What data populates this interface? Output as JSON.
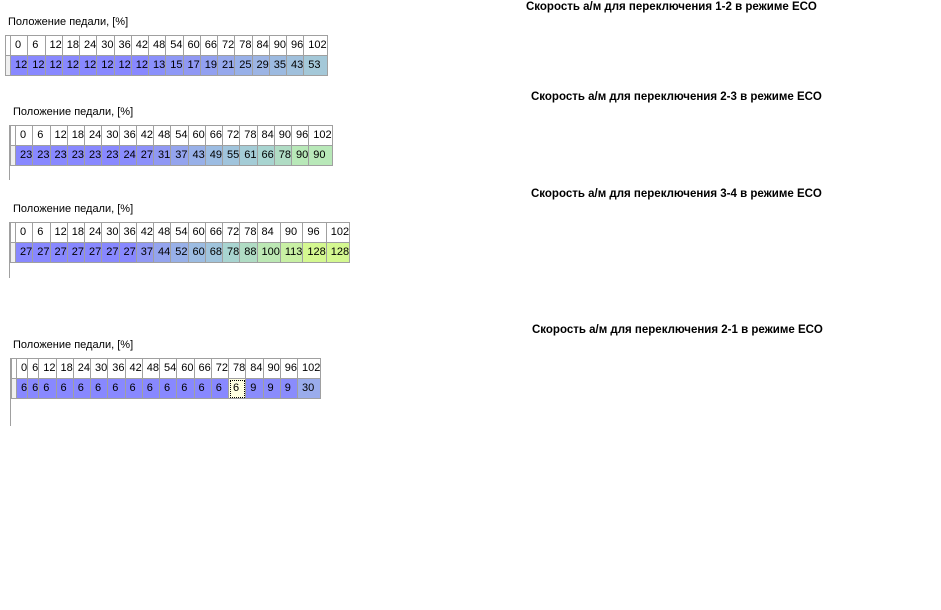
{
  "pedal_label": "Положение педали, [%]",
  "tables": [
    {
      "title": "Скорость а/м для переключения 1-2 в режиме ECO",
      "headers": [
        "0",
        "6",
        "12",
        "18",
        "24",
        "30",
        "36",
        "42",
        "48",
        "54",
        "60",
        "66",
        "72",
        "78",
        "84",
        "90",
        "96",
        "102"
      ],
      "values": [
        "12",
        "12",
        "12",
        "12",
        "12",
        "12",
        "12",
        "12",
        "13",
        "15",
        "17",
        "19",
        "21",
        "25",
        "29",
        "35",
        "43",
        "53"
      ],
      "colors": [
        "#8888ff",
        "#8888ff",
        "#8888ff",
        "#8888ff",
        "#8888ff",
        "#8888ff",
        "#8888ff",
        "#8888ff",
        "#8a90fb",
        "#8e98f6",
        "#9098f4",
        "#92a0f0",
        "#96a8ec",
        "#98b0e8",
        "#9cb4e4",
        "#9cbae0",
        "#a0c0dc",
        "#a4c8d8"
      ]
    },
    {
      "title": "Скорость а/м для переключения 2-3 в режиме ECO",
      "headers": [
        "0",
        "6",
        "12",
        "18",
        "24",
        "30",
        "36",
        "42",
        "48",
        "54",
        "60",
        "66",
        "72",
        "78",
        "84",
        "90",
        "96",
        "102"
      ],
      "values": [
        "23",
        "23",
        "23",
        "23",
        "23",
        "23",
        "24",
        "27",
        "31",
        "37",
        "43",
        "49",
        "55",
        "61",
        "66",
        "78",
        "90",
        "90"
      ],
      "colors": [
        "#8888ff",
        "#8888ff",
        "#8888ff",
        "#8888ff",
        "#8888ff",
        "#8888ff",
        "#8a8cfc",
        "#8c90fa",
        "#9098f4",
        "#94a4ee",
        "#98b0e8",
        "#9cbce2",
        "#a0c4dc",
        "#a4ccd6",
        "#a8d4d0",
        "#b0dcc4",
        "#b8e8b8",
        "#b8e8b8"
      ]
    },
    {
      "title": "Скорость а/м для переключения 3-4 в режиме ECO",
      "headers": [
        "0",
        "6",
        "12",
        "18",
        "24",
        "30",
        "36",
        "42",
        "48",
        "54",
        "60",
        "66",
        "72",
        "78",
        "84",
        "90",
        "96",
        "102"
      ],
      "values": [
        "27",
        "27",
        "27",
        "27",
        "27",
        "27",
        "27",
        "37",
        "44",
        "52",
        "60",
        "68",
        "78",
        "88",
        "100",
        "113",
        "128",
        "128"
      ],
      "colors": [
        "#8888ff",
        "#8888ff",
        "#8888ff",
        "#8888ff",
        "#8888ff",
        "#8888ff",
        "#8888ff",
        "#9098f4",
        "#94a4ee",
        "#98b0e8",
        "#9cbce2",
        "#a0c4dc",
        "#a8d4d0",
        "#b0dcc4",
        "#bce8b4",
        "#c8f0a4",
        "#d4f890",
        "#d4f890"
      ]
    },
    {
      "title": "Скорость а/м для переключения 2-1 в режиме ECO",
      "headers": [
        "0",
        "6",
        "12",
        "18",
        "24",
        "30",
        "36",
        "42",
        "48",
        "54",
        "60",
        "66",
        "72",
        "78",
        "84",
        "90",
        "96",
        "102"
      ],
      "values": [
        "6",
        "6",
        "6",
        "6",
        "6",
        "6",
        "6",
        "6",
        "6",
        "6",
        "6",
        "6",
        "6",
        "6",
        "9",
        "9",
        "9",
        "30"
      ],
      "colors": [
        "#8888ff",
        "#8888ff",
        "#8888ff",
        "#8888ff",
        "#8888ff",
        "#8888ff",
        "#8888ff",
        "#8888ff",
        "#8888ff",
        "#8888ff",
        "#8888ff",
        "#8888ff",
        "#8888ff",
        "#ffffe0",
        "#8a8cfc",
        "#8a8cfc",
        "#8a8cfc",
        "#9aacec"
      ],
      "selected_index": 13
    }
  ]
}
